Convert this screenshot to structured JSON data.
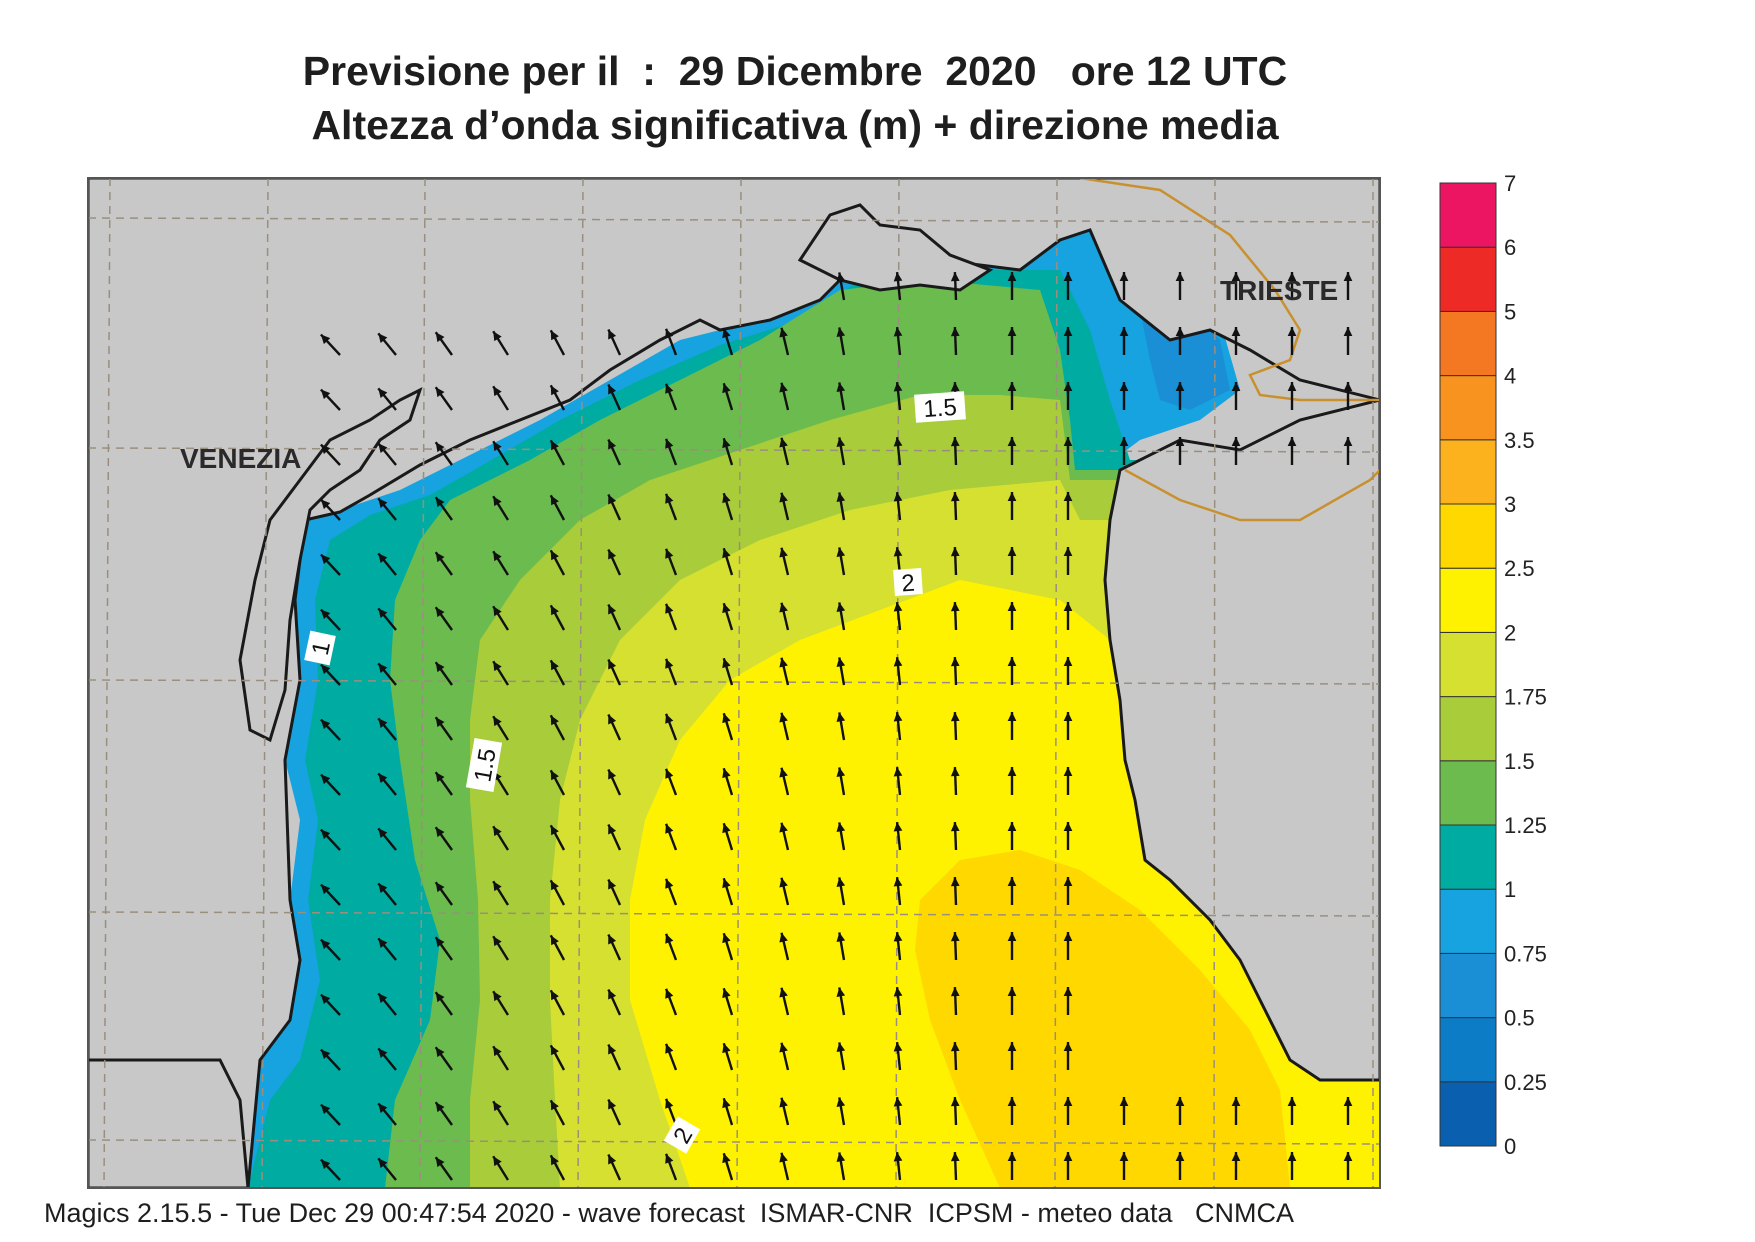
{
  "title": {
    "line1": "Previsione per il  :  29 Dicembre  2020   ore 12 UTC",
    "line2": "Altezza d’onda significativa (m) + direzione media"
  },
  "map": {
    "place_labels": [
      "VENEZIA",
      "TRIESTE"
    ],
    "contour_labels": [
      "1",
      "1.5",
      "1.5",
      "2",
      "2"
    ],
    "colors": {
      "land": "#c8c8c8",
      "coast": "#1a1a1a",
      "border": "#c8902e",
      "grid": "#9a8f7e",
      "arrow": "#111111"
    }
  },
  "legend": {
    "levels": [
      "0",
      "0.25",
      "0.5",
      "0.75",
      "1",
      "1.25",
      "1.5",
      "1.75",
      "2",
      "2.5",
      "3",
      "3.5",
      "4",
      "5",
      "6",
      "7"
    ],
    "colors": [
      "#0a5fae",
      "#0d7cc6",
      "#1b8fd6",
      "#17a2e0",
      "#00aca2",
      "#6cbb4e",
      "#a8cc3a",
      "#d6e030",
      "#fff200",
      "#ffd800",
      "#fcb21c",
      "#f7931e",
      "#f47721",
      "#ee2a26",
      "#ec1561"
    ]
  },
  "footer": "Magics 2.15.5 - Tue Dec 29 00:47:54 2020 - wave forecast  ISMAR-CNR  ICPSM - meteo data   CNMCA"
}
